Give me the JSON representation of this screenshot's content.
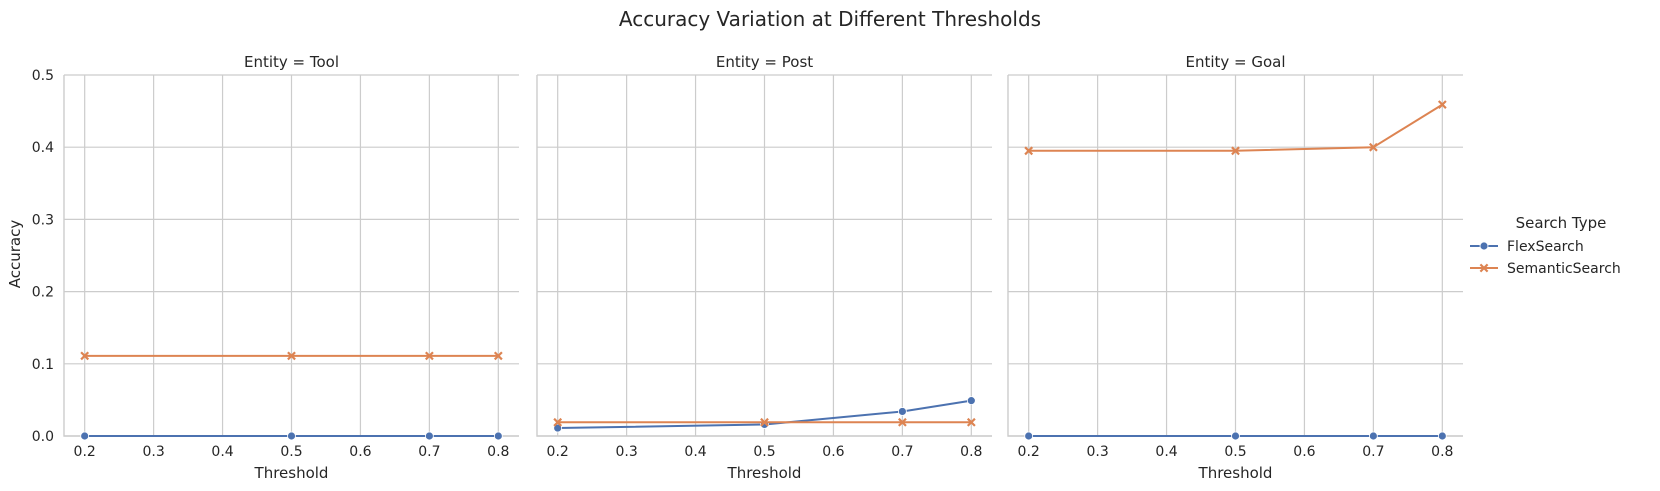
{
  "chart_data": {
    "type": "line",
    "title": "Accuracy Variation at Different Thresholds",
    "xlabel": "Threshold",
    "ylabel": "Accuracy",
    "xlim": [
      0.17,
      0.83
    ],
    "ylim": [
      0,
      0.5
    ],
    "xticks": [
      "0.2",
      "0.3",
      "0.4",
      "0.5",
      "0.6",
      "0.7",
      "0.8"
    ],
    "yticks": [
      "0.0",
      "0.1",
      "0.2",
      "0.3",
      "0.4",
      "0.5"
    ],
    "grid": true,
    "legend": {
      "title": "Search Type",
      "placement": "right",
      "entries": [
        "FlexSearch",
        "SemanticSearch"
      ]
    },
    "colors": {
      "FlexSearch": "#4c72b0",
      "SemanticSearch": "#dd8452"
    },
    "markers": {
      "FlexSearch": "circle",
      "SemanticSearch": "x"
    },
    "panels": [
      {
        "title": "Entity = Tool",
        "x": [
          0.2,
          0.5,
          0.7,
          0.8
        ],
        "series": [
          {
            "name": "FlexSearch",
            "values": [
              0.0,
              0.0,
              0.0,
              0.0
            ]
          },
          {
            "name": "SemanticSearch",
            "values": [
              0.111,
              0.111,
              0.111,
              0.111
            ]
          }
        ]
      },
      {
        "title": "Entity = Post",
        "x": [
          0.2,
          0.5,
          0.7,
          0.8
        ],
        "series": [
          {
            "name": "FlexSearch",
            "values": [
              0.011,
              0.016,
              0.034,
              0.049
            ]
          },
          {
            "name": "SemanticSearch",
            "values": [
              0.019,
              0.019,
              0.019,
              0.019
            ]
          }
        ]
      },
      {
        "title": "Entity = Goal",
        "x": [
          0.2,
          0.5,
          0.7,
          0.8
        ],
        "series": [
          {
            "name": "FlexSearch",
            "values": [
              0.0,
              0.0,
              0.0,
              0.0
            ]
          },
          {
            "name": "SemanticSearch",
            "values": [
              0.395,
              0.395,
              0.4,
              0.459
            ]
          }
        ]
      }
    ]
  }
}
